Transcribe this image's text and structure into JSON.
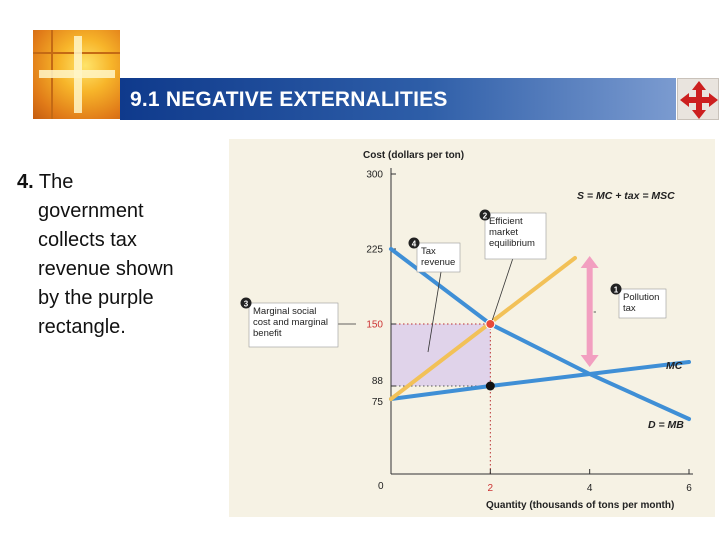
{
  "header": {
    "title": "9.1 NEGATIVE EXTERNALITIES",
    "logo_icon": "orange-cross-logo-icon",
    "nav_icon": "red-arrows-cross-icon",
    "colors": {
      "title_bar": "#1f4c9e",
      "title_text": "#ffffff",
      "nav_icon": "#cc1f1f"
    }
  },
  "body": {
    "number": "4.",
    "lines": [
      "The",
      "government",
      "collects tax",
      "revenue shown",
      "by the purple",
      "rectangle."
    ]
  },
  "chart_data": {
    "type": "line",
    "ylabel": "Cost (dollars per ton)",
    "xlabel": "Quantity (thousands of tons per month)",
    "origin_label": "0",
    "x_ticks": [
      2,
      4,
      6
    ],
    "y_ticks": [
      75,
      88,
      150,
      225,
      300
    ],
    "xlim": [
      0,
      6
    ],
    "ylim": [
      0,
      300
    ],
    "series": [
      {
        "name": "S = MC + tax = MSC",
        "x": [
          0,
          2,
          4
        ],
        "y": [
          75,
          150,
          225
        ],
        "color": "#f2c158"
      },
      {
        "name": "MC",
        "x": [
          0,
          2,
          4,
          6
        ],
        "y": [
          75,
          88,
          100,
          112
        ],
        "color": "#3f8fd6"
      },
      {
        "name": "D = MB",
        "x": [
          0,
          2,
          4,
          6
        ],
        "y": [
          225,
          150,
          100,
          55
        ],
        "color": "#3f8fd6"
      }
    ],
    "equilibrium": {
      "x": 2,
      "y": 150,
      "label": "Efficient market equilibrium",
      "marker": "2"
    },
    "mc_point": {
      "x": 2,
      "y": 88
    },
    "tax_revenue_rect": {
      "x0": 0,
      "x1": 2,
      "y0": 88,
      "y1": 150,
      "color": "#d8c8ec",
      "label": "Tax revenue",
      "marker": "4"
    },
    "pollution_tax": {
      "x": 4,
      "y_top": 225,
      "y_bottom": 100,
      "label": "Pollution tax",
      "marker": "1",
      "color": "#f29fc0"
    },
    "marginal_label": {
      "text": "Marginal social cost and marginal benefit",
      "marker": "3",
      "y": 150
    }
  }
}
